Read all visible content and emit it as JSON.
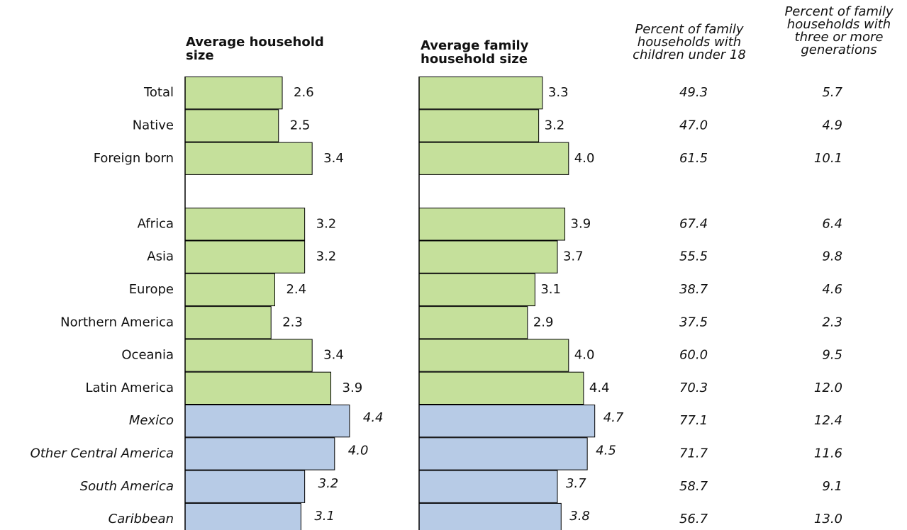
{
  "chart_data": [
    {
      "type": "bar",
      "orientation": "horizontal",
      "title": "Average household size",
      "categories": [
        "Total",
        "Native",
        "Foreign born",
        null,
        "Africa",
        "Asia",
        "Europe",
        "Northern America",
        "Oceania",
        "Latin America",
        "Mexico",
        "Other Central America",
        "South America",
        "Caribbean"
      ],
      "label_styles": [
        "normal",
        "normal",
        "normal",
        "normal",
        "normal",
        "normal",
        "normal",
        "normal",
        "normal",
        "normal",
        "italic",
        "italic",
        "italic",
        "italic"
      ],
      "values": [
        2.6,
        2.5,
        3.4,
        null,
        3.2,
        3.2,
        2.4,
        2.3,
        3.4,
        3.9,
        4.4,
        4.0,
        3.2,
        3.1
      ],
      "value_labels": [
        "2.6",
        "2.5",
        "3.4",
        null,
        "3.2",
        "3.2",
        "2.4",
        "2.3",
        "3.4",
        "3.9",
        "4.4",
        "4.0",
        "3.2",
        "3.1"
      ],
      "colors": [
        "#c5e09b",
        "#c5e09b",
        "#c5e09b",
        null,
        "#c5e09b",
        "#c5e09b",
        "#c5e09b",
        "#c5e09b",
        "#c5e09b",
        "#c5e09b",
        "#b7cbe6",
        "#b7cbe6",
        "#b7cbe6",
        "#b7cbe6"
      ],
      "xlim": [
        0,
        5
      ]
    },
    {
      "type": "bar",
      "orientation": "horizontal",
      "title": "Average family household size",
      "values": [
        3.3,
        3.2,
        4.0,
        null,
        3.9,
        3.7,
        3.1,
        2.9,
        4.0,
        4.4,
        4.7,
        4.5,
        3.7,
        3.8
      ],
      "value_labels": [
        "3.3",
        "3.2",
        "4.0",
        null,
        "3.9",
        "3.7",
        "3.1",
        "2.9",
        "4.0",
        "4.4",
        "4.7",
        "4.5",
        "3.7",
        "3.8"
      ],
      "colors": [
        "#c5e09b",
        "#c5e09b",
        "#c5e09b",
        null,
        "#c5e09b",
        "#c5e09b",
        "#c5e09b",
        "#c5e09b",
        "#c5e09b",
        "#c5e09b",
        "#b7cbe6",
        "#b7cbe6",
        "#b7cbe6",
        "#b7cbe6"
      ],
      "xlim": [
        0,
        5
      ]
    }
  ],
  "table": {
    "columns": [
      "Percent of family households with children under 18",
      "Percent of family households with three or more generations"
    ],
    "rows": [
      [
        "49.3",
        "5.7"
      ],
      [
        "47.0",
        "4.9"
      ],
      [
        "61.5",
        "10.1"
      ],
      [
        null,
        null
      ],
      [
        "67.4",
        "6.4"
      ],
      [
        "55.5",
        "9.8"
      ],
      [
        "38.7",
        "4.6"
      ],
      [
        "37.5",
        "2.3"
      ],
      [
        "60.0",
        "9.5"
      ],
      [
        "70.3",
        "12.0"
      ],
      [
        "77.1",
        "12.4"
      ],
      [
        "71.7",
        "11.6"
      ],
      [
        "58.7",
        "9.1"
      ],
      [
        "56.7",
        "13.0"
      ]
    ]
  }
}
